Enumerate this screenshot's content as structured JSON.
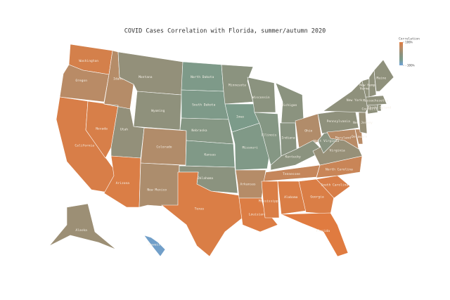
{
  "title": "COVID Cases Correlation with Florida, summer/autumn 2020",
  "colorbar": {
    "title": "Correlation",
    "colors": [
      "#6fa0d8",
      "#7a9c8c",
      "#8f917c",
      "#b98b66",
      "#e07b40"
    ],
    "ticks": [
      {
        "value": 100,
        "label": "100%"
      },
      {
        "value": -100,
        "label": "-100%"
      }
    ]
  },
  "states": [
    {
      "name": "Washington",
      "value": 85
    },
    {
      "name": "Oregon",
      "value": 50
    },
    {
      "name": "California",
      "value": 90
    },
    {
      "name": "Nevada",
      "value": 88
    },
    {
      "name": "Idaho",
      "value": 45
    },
    {
      "name": "Montana",
      "value": 5
    },
    {
      "name": "Wyoming",
      "value": 0
    },
    {
      "name": "Utah",
      "value": 5
    },
    {
      "name": "Arizona",
      "value": 92
    },
    {
      "name": "Colorado",
      "value": 40
    },
    {
      "name": "New Mexico",
      "value": 35
    },
    {
      "name": "North Dakota",
      "value": -40
    },
    {
      "name": "South Dakota",
      "value": -40
    },
    {
      "name": "Nebraska",
      "value": -25
    },
    {
      "name": "Kansas",
      "value": -35
    },
    {
      "name": "Oklahoma",
      "value": -10
    },
    {
      "name": "Texas",
      "value": 92
    },
    {
      "name": "Minnesota",
      "value": -10
    },
    {
      "name": "Iowa",
      "value": -45
    },
    {
      "name": "Missouri",
      "value": -35
    },
    {
      "name": "Arkansas",
      "value": 45
    },
    {
      "name": "Louisiana",
      "value": 95
    },
    {
      "name": "Wisconsin",
      "value": -10
    },
    {
      "name": "Illinois",
      "value": -25
    },
    {
      "name": "Michigan",
      "value": -10
    },
    {
      "name": "Indiana",
      "value": -15
    },
    {
      "name": "Ohio",
      "value": 40
    },
    {
      "name": "Kentucky",
      "value": -10
    },
    {
      "name": "Tennessee",
      "value": 65
    },
    {
      "name": "Mississippi",
      "value": 92
    },
    {
      "name": "Alabama",
      "value": 92
    },
    {
      "name": "Georgia",
      "value": 92
    },
    {
      "name": "Florida",
      "value": 100
    },
    {
      "name": "South Carolina",
      "value": 90
    },
    {
      "name": "North Carolina",
      "value": 70
    },
    {
      "name": "Virginia",
      "value": 10
    },
    {
      "name": "West Virginia",
      "value": -15
    },
    {
      "name": "Pennsylvania",
      "value": 0
    },
    {
      "name": "Maryland",
      "value": 50
    },
    {
      "name": "Delaware",
      "value": 50
    },
    {
      "name": "New Jersey",
      "value": 10
    },
    {
      "name": "New York",
      "value": 0
    },
    {
      "name": "Connecticut",
      "value": 0
    },
    {
      "name": "Rhode Island",
      "value": 0
    },
    {
      "name": "Massachusetts",
      "value": 0
    },
    {
      "name": "Vermont",
      "value": 0
    },
    {
      "name": "New Hampshire",
      "value": 0
    },
    {
      "name": "Maine",
      "value": 0
    },
    {
      "name": "Alaska",
      "value": 15
    },
    {
      "name": "Hawaii",
      "value": -90
    }
  ]
}
